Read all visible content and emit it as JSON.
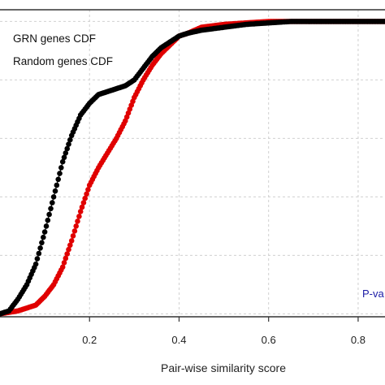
{
  "chart_data": {
    "type": "line",
    "title": "",
    "xlabel": "Pair-wise similarity score",
    "ylabel": "",
    "xlim": [
      0.0,
      0.86
    ],
    "ylim": [
      -0.01,
      1.04
    ],
    "x_ticks": [
      "0.2",
      "0.4",
      "0.6",
      "0.8"
    ],
    "x_tick_values": [
      0.2,
      0.4,
      0.6,
      0.8
    ],
    "y_grid_values": [
      0.0,
      0.2,
      0.4,
      0.6,
      0.8,
      1.0
    ],
    "grid": true,
    "legend_position": "top-left",
    "legend": [
      "GRN genes CDF",
      "Random genes CDF"
    ],
    "annotation": {
      "text": "P-va",
      "color": "#1a1aa6"
    },
    "series": [
      {
        "name": "GRN genes CDF",
        "color": "#000000",
        "x": [
          0.0,
          0.02,
          0.04,
          0.06,
          0.08,
          0.1,
          0.12,
          0.14,
          0.16,
          0.18,
          0.2,
          0.22,
          0.24,
          0.26,
          0.28,
          0.3,
          0.32,
          0.34,
          0.36,
          0.38,
          0.4,
          0.42,
          0.45,
          0.5,
          0.55,
          0.6,
          0.65,
          0.7,
          0.72,
          0.8,
          0.86
        ],
        "y": [
          0.0,
          0.01,
          0.05,
          0.1,
          0.17,
          0.28,
          0.4,
          0.52,
          0.61,
          0.68,
          0.72,
          0.75,
          0.76,
          0.77,
          0.78,
          0.8,
          0.84,
          0.88,
          0.91,
          0.93,
          0.95,
          0.96,
          0.97,
          0.98,
          0.99,
          0.995,
          1.0,
          1.0,
          1.0,
          1.0,
          1.0
        ]
      },
      {
        "name": "Random genes CDF",
        "color": "#e00000",
        "x": [
          0.0,
          0.04,
          0.08,
          0.1,
          0.12,
          0.14,
          0.16,
          0.18,
          0.2,
          0.22,
          0.24,
          0.26,
          0.28,
          0.3,
          0.32,
          0.34,
          0.36,
          0.38,
          0.4,
          0.42,
          0.45,
          0.5,
          0.55,
          0.6,
          0.65,
          0.7,
          0.72,
          0.8,
          0.86
        ],
        "y": [
          0.0,
          0.01,
          0.03,
          0.06,
          0.1,
          0.16,
          0.25,
          0.35,
          0.44,
          0.5,
          0.55,
          0.6,
          0.66,
          0.74,
          0.8,
          0.85,
          0.89,
          0.92,
          0.95,
          0.96,
          0.98,
          0.99,
          0.995,
          1.0,
          1.0,
          1.0,
          1.0,
          1.0,
          1.0
        ]
      }
    ]
  }
}
